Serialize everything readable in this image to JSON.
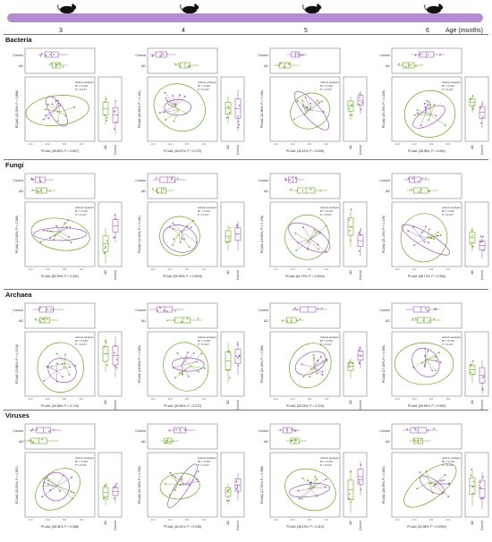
{
  "header": {
    "ages": [
      "3",
      "4",
      "5",
      "6"
    ],
    "age_axis_label": "Age (months)",
    "band_color": "#b58bd1"
  },
  "colors": {
    "Control": "#9b59b6",
    "AD": "#6aa51f"
  },
  "legend_groups": [
    "Control",
    "AD"
  ],
  "box_x_labels": [
    "AD",
    "Control"
  ],
  "adonis": [
    "Adonis analysis",
    "R² = 0.116",
    "P = 0.127"
  ],
  "sections": [
    {
      "name": "Bacteria",
      "panels": [
        {
          "age": "3",
          "xlabel": "PCoA1 (33.54%, P = 0.607)",
          "ylabel": "PCoA2 (22.25%, P = 0.868)"
        },
        {
          "age": "4",
          "xlabel": "PCoA1 (33.67%, P = 0.272)",
          "ylabel": "PCoA2 (22.62%, P = 0.161)"
        },
        {
          "age": "5",
          "xlabel": "PCoA1 (43.41%, P = 0.028)",
          "ylabel": "PCoA2 (21.96%, P = 0.036)"
        },
        {
          "age": "6",
          "xlabel": "PCoA1 (28.38%, P = 0.001)",
          "ylabel": "PCoA2 (23.03%, P = 0.224)"
        }
      ]
    },
    {
      "name": "Fungi",
      "panels": [
        {
          "age": "3",
          "xlabel": "PCoA1 (82.93%, P = 0.001)",
          "ylabel": "PCoA2 (13.62%, P = 0.089)"
        },
        {
          "age": "4",
          "xlabel": "PCoA1 (59.28%, P = 0.0004)",
          "ylabel": "PCoA2 (11.52%, P = 0.161)"
        },
        {
          "age": "5",
          "xlabel": "PCoA1 (61.79%, P = 0.0004)",
          "ylabel": "PCoA2 (19.63%, P = 0.178)"
        },
        {
          "age": "6",
          "xlabel": "PCoA1 (48.71%, P = 0.900)",
          "ylabel": "PCoA2 (21.13%, P = 0.178)"
        }
      ]
    },
    {
      "name": "Archaea",
      "panels": [
        {
          "age": "3",
          "xlabel": "PCoA1 (34.38%, P = 0.713)",
          "ylabel": "PCoA2 (19.86%, P = 0.0004)"
        },
        {
          "age": "4",
          "xlabel": "PCoA1 (34.84%, P = 0.272)",
          "ylabel": "PCoA2 (19.59%, P = 0.356)"
        },
        {
          "age": "5",
          "xlabel": "PCoA1 (28.22%, P = 0.224)",
          "ylabel": "PCoA2 (21.18%, P = 0.356)"
        },
        {
          "age": "6",
          "xlabel": "PCoA1 (53.53%, P = 0.900)",
          "ylabel": "PCoA2 (17.18%, P = 0.456)"
        }
      ]
    },
    {
      "name": "Viruses",
      "panels": [
        {
          "age": "3",
          "xlabel": "PCoA1 (38.34%, P = 0.068)",
          "ylabel": "PCoA2 (20.60%, P = 0.850)"
        },
        {
          "age": "4",
          "xlabel": "PCoA1 (34.31%, P = 0.028)",
          "ylabel": "PCoA2 (20.33%, P = 0.356)"
        },
        {
          "age": "5",
          "xlabel": "PCoA1 (28.13%, P = 0.113)",
          "ylabel": "PCoA2 (17.31%, P = 0.388)"
        },
        {
          "age": "6",
          "xlabel": "PCoA1 (32.38%, P = 0.0004)",
          "ylabel": "PCoA2 (28.09%, P = 0.850)"
        }
      ]
    }
  ],
  "chart_data": {
    "type": "scatter",
    "description_kind": "PCoA ordination grid with marginal boxplots",
    "groups": [
      "Control",
      "AD"
    ],
    "rows": [
      "Bacteria",
      "Fungi",
      "Archaea",
      "Viruses"
    ],
    "columns_age_months": [
      3,
      4,
      5,
      6
    ]
  }
}
